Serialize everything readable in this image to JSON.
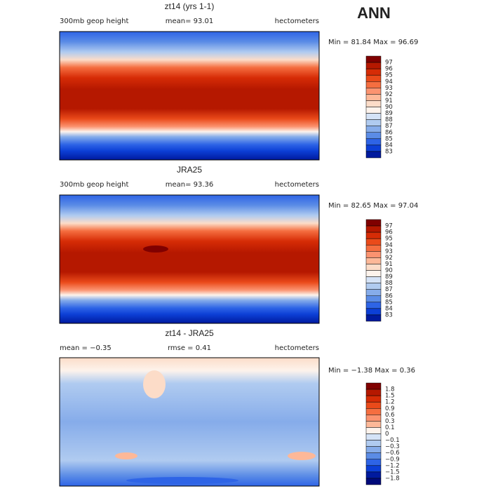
{
  "title": "ANN",
  "panels": [
    {
      "title": "zt14 (yrs 1-1)",
      "left": "300mb geop height",
      "center": "mean=  93.01",
      "right": "hectometers",
      "stats": "Min =  81.84 Max =  96.69",
      "colorbar": [
        "97",
        "96",
        "95",
        "94",
        "93",
        "92",
        "91",
        "90",
        "89",
        "88",
        "87",
        "86",
        "85",
        "84",
        "83"
      ]
    },
    {
      "title": "JRA25",
      "left": "300mb geop height",
      "center": "mean=  93.36",
      "right": "hectometers",
      "stats": "Min =  82.65 Max =  97.04",
      "colorbar": [
        "97",
        "96",
        "95",
        "94",
        "93",
        "92",
        "91",
        "90",
        "89",
        "88",
        "87",
        "86",
        "85",
        "84",
        "83"
      ]
    },
    {
      "title": "zt14 - JRA25",
      "left": "mean =  −0.35",
      "center": "rmse =    0.41",
      "right": "hectometers",
      "stats": "Min =  −1.38 Max =    0.36",
      "colorbar": [
        "1.8",
        "1.5",
        "1.2",
        "0.9",
        "0.6",
        "0.3",
        "0.1",
        "0",
        "−0.1",
        "−0.3",
        "−0.6",
        "−0.9",
        "−1.2",
        "−1.5",
        "−1.8"
      ]
    }
  ]
}
